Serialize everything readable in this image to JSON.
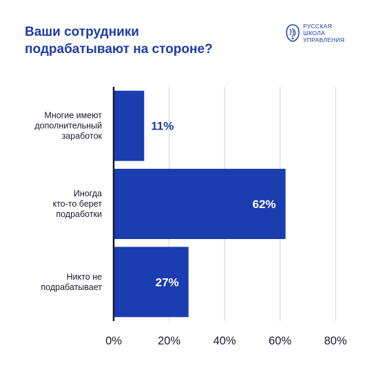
{
  "header": {
    "title": "Ваши сотрудники\nподрабатывают на стороне?",
    "logo_text": "РУССКАЯ\nШКОЛА\nУПРАВЛЕНИЯ"
  },
  "colors": {
    "bar": "#1a3db0",
    "title": "#1e3ca8",
    "label_outside": "#1e3ca8",
    "label_inside": "#ffffff",
    "grid": "#cfd3da",
    "axis": "#1a1a2e"
  },
  "chart_data": {
    "type": "bar",
    "orientation": "horizontal",
    "categories": [
      [
        "Многие имеют",
        "дополнительный",
        "заработок"
      ],
      [
        "Иногда",
        "кто-то берет",
        "подработки"
      ],
      [
        "Никто не",
        "подрабатывает"
      ]
    ],
    "values": [
      11,
      62,
      27
    ],
    "data_labels": [
      "11%",
      "62%",
      "27%"
    ],
    "xlim": [
      0,
      80
    ],
    "x_ticks": [
      0,
      20,
      40,
      60,
      80
    ],
    "x_tick_labels": [
      "0%",
      "20%",
      "40%",
      "60%",
      "80%"
    ],
    "grid": true,
    "legend": false
  }
}
